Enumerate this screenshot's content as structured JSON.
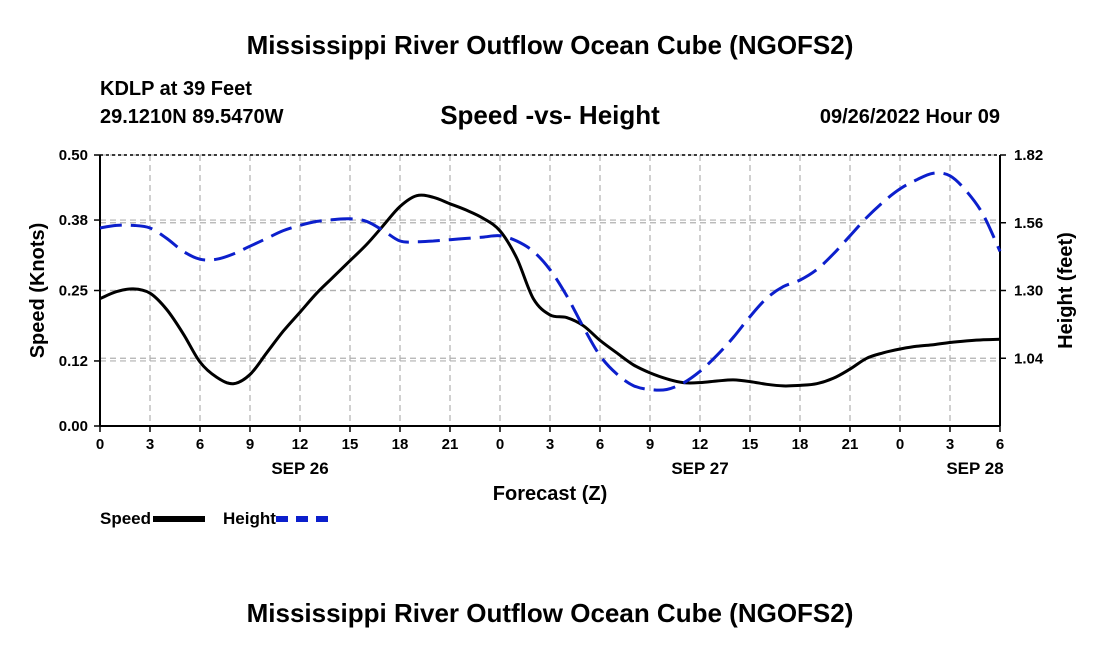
{
  "header": {
    "title": "Mississippi River Outflow Ocean Cube (NGOFS2)",
    "station": "KDLP at 39 Feet",
    "coordinates": "29.1210N  89.5470W",
    "subtitle": "Speed -vs- Height",
    "datetime": "09/26/2022 Hour 09"
  },
  "footer": {
    "title": "Mississippi River Outflow Ocean Cube (NGOFS2)"
  },
  "legend": {
    "speed_label": "Speed",
    "height_label": "Height"
  },
  "colors": {
    "speed": "#000000",
    "height": "#0c1fcc",
    "grid": "#b0b0b0"
  },
  "chart_data": {
    "type": "line",
    "title": "Speed -vs- Height",
    "xlabel": "Forecast (Z)",
    "ylabel": "Speed (Knots)",
    "y2label": "Height (feet)",
    "x_unit": "hours from SEP 26 00Z",
    "xlim": [
      0,
      54
    ],
    "ylim": [
      0.0,
      0.5
    ],
    "y2lim": [
      0.78,
      1.82
    ],
    "x_ticks": [
      0,
      3,
      6,
      9,
      12,
      15,
      18,
      21,
      24,
      27,
      30,
      33,
      36,
      39,
      42,
      45,
      48,
      51,
      54
    ],
    "x_tick_labels": [
      "0",
      "3",
      "6",
      "9",
      "12",
      "15",
      "18",
      "21",
      "0",
      "3",
      "6",
      "9",
      "12",
      "15",
      "18",
      "21",
      "0",
      "3",
      "6"
    ],
    "date_labels": [
      {
        "x": 12,
        "label": "SEP 26"
      },
      {
        "x": 36,
        "label": "SEP 27"
      },
      {
        "x": 52.5,
        "label": "SEP 28"
      }
    ],
    "y_ticks": [
      0.0,
      0.12,
      0.25,
      0.38,
      0.5
    ],
    "y_tick_labels": [
      "0.00",
      "0.12",
      "0.25",
      "0.38",
      "0.50"
    ],
    "y2_ticks": [
      1.04,
      1.3,
      1.56,
      1.82
    ],
    "y2_tick_labels": [
      "1.04",
      "1.30",
      "1.56",
      "1.82"
    ],
    "grid": true,
    "series": [
      {
        "name": "Speed",
        "axis": "left",
        "style": "solid",
        "x": [
          0,
          1,
          2,
          3,
          4,
          5,
          6,
          7,
          8,
          9,
          10,
          11,
          12,
          13,
          14,
          15,
          16,
          17,
          18,
          19,
          20,
          21,
          22,
          23,
          24,
          25,
          26,
          27,
          28,
          29,
          30,
          31,
          32,
          33,
          34,
          35,
          36,
          37,
          38,
          39,
          40,
          41,
          42,
          43,
          44,
          45,
          46,
          47,
          48,
          49,
          50,
          51,
          52,
          53,
          54
        ],
        "values": [
          0.235,
          0.248,
          0.253,
          0.245,
          0.215,
          0.17,
          0.118,
          0.09,
          0.078,
          0.095,
          0.135,
          0.175,
          0.21,
          0.245,
          0.275,
          0.305,
          0.335,
          0.37,
          0.405,
          0.425,
          0.422,
          0.41,
          0.398,
          0.383,
          0.36,
          0.31,
          0.235,
          0.205,
          0.2,
          0.185,
          0.158,
          0.135,
          0.113,
          0.098,
          0.087,
          0.08,
          0.08,
          0.083,
          0.085,
          0.082,
          0.077,
          0.074,
          0.075,
          0.078,
          0.088,
          0.105,
          0.125,
          0.135,
          0.142,
          0.147,
          0.15,
          0.154,
          0.157,
          0.159,
          0.16
        ]
      },
      {
        "name": "Height",
        "axis": "right",
        "style": "dashed",
        "x": [
          0,
          1,
          2,
          3,
          4,
          5,
          6,
          7,
          8,
          9,
          10,
          11,
          12,
          13,
          14,
          15,
          16,
          17,
          18,
          19,
          20,
          21,
          22,
          23,
          24,
          25,
          26,
          27,
          28,
          29,
          30,
          31,
          32,
          33,
          34,
          35,
          36,
          37,
          38,
          39,
          40,
          41,
          42,
          43,
          44,
          45,
          46,
          47,
          48,
          49,
          50,
          51,
          52,
          53,
          54
        ],
        "values": [
          1.54,
          1.55,
          1.55,
          1.54,
          1.5,
          1.45,
          1.42,
          1.42,
          1.44,
          1.47,
          1.5,
          1.53,
          1.55,
          1.565,
          1.572,
          1.575,
          1.565,
          1.53,
          1.49,
          1.487,
          1.49,
          1.495,
          1.5,
          1.505,
          1.51,
          1.49,
          1.45,
          1.38,
          1.28,
          1.16,
          1.05,
          0.98,
          0.935,
          0.92,
          0.92,
          0.945,
          0.99,
          1.05,
          1.12,
          1.2,
          1.27,
          1.315,
          1.34,
          1.38,
          1.44,
          1.51,
          1.58,
          1.64,
          1.69,
          1.725,
          1.75,
          1.74,
          1.68,
          1.59,
          1.45
        ]
      }
    ]
  }
}
